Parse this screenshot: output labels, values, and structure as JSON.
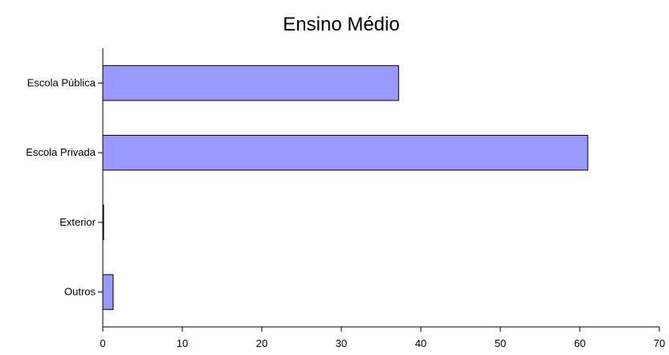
{
  "chart_data": {
    "type": "bar",
    "orientation": "horizontal",
    "title": "Ensino Médio",
    "xlabel": "",
    "ylabel": "",
    "categories": [
      "Escola Pública",
      "Escola Privada",
      "Exterior",
      "Outros"
    ],
    "values": [
      37.2,
      61.0,
      0.1,
      1.3
    ],
    "xlim": [
      0,
      70
    ],
    "xticks": [
      0,
      10,
      20,
      30,
      40,
      50,
      60,
      70
    ],
    "grid": false,
    "legend": "none",
    "bar_color": "#9999ff"
  }
}
